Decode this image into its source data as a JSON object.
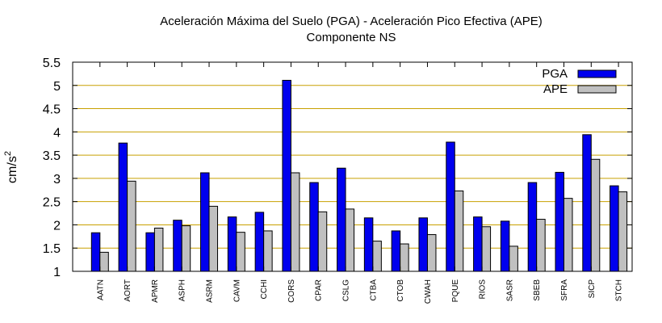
{
  "chart_data": {
    "type": "bar",
    "title": "Aceleración Máxima del Suelo (PGA) -  Aceleración Pico Efectiva (APE)",
    "subtitle": "Componente NS",
    "ylabel": "cm/s",
    "ylabel_superscript": "2",
    "ylim": [
      1,
      5.5
    ],
    "yticks": [
      "1",
      "1.5",
      "2",
      "2.5",
      "3",
      "3.5",
      "4",
      "4.5",
      "5",
      "5.5"
    ],
    "grid": true,
    "legend_position": "top-right",
    "categories": [
      "AATN",
      "AORT",
      "APMR",
      "ASPH",
      "ASRM",
      "CAVM",
      "CCHI",
      "CORS",
      "CPAR",
      "CSLG",
      "CTBA",
      "CTOB",
      "CWAH",
      "PQUE",
      "RIOS",
      "SASR",
      "SBEB",
      "SFRA",
      "SICP",
      "STCH"
    ],
    "series": [
      {
        "name": "PGA",
        "color": "#0000ee",
        "values": [
          1.83,
          3.76,
          1.83,
          2.1,
          3.12,
          2.17,
          2.27,
          5.11,
          2.91,
          3.22,
          2.15,
          1.87,
          2.15,
          3.78,
          2.17,
          2.08,
          2.91,
          3.13,
          3.94,
          2.84
        ]
      },
      {
        "name": "APE",
        "color": "#c0c0c0",
        "values": [
          1.41,
          2.94,
          1.93,
          1.98,
          2.4,
          1.84,
          1.87,
          3.12,
          2.28,
          2.34,
          1.65,
          1.59,
          1.79,
          2.73,
          1.96,
          1.54,
          2.12,
          2.57,
          3.41,
          2.71
        ]
      }
    ]
  }
}
